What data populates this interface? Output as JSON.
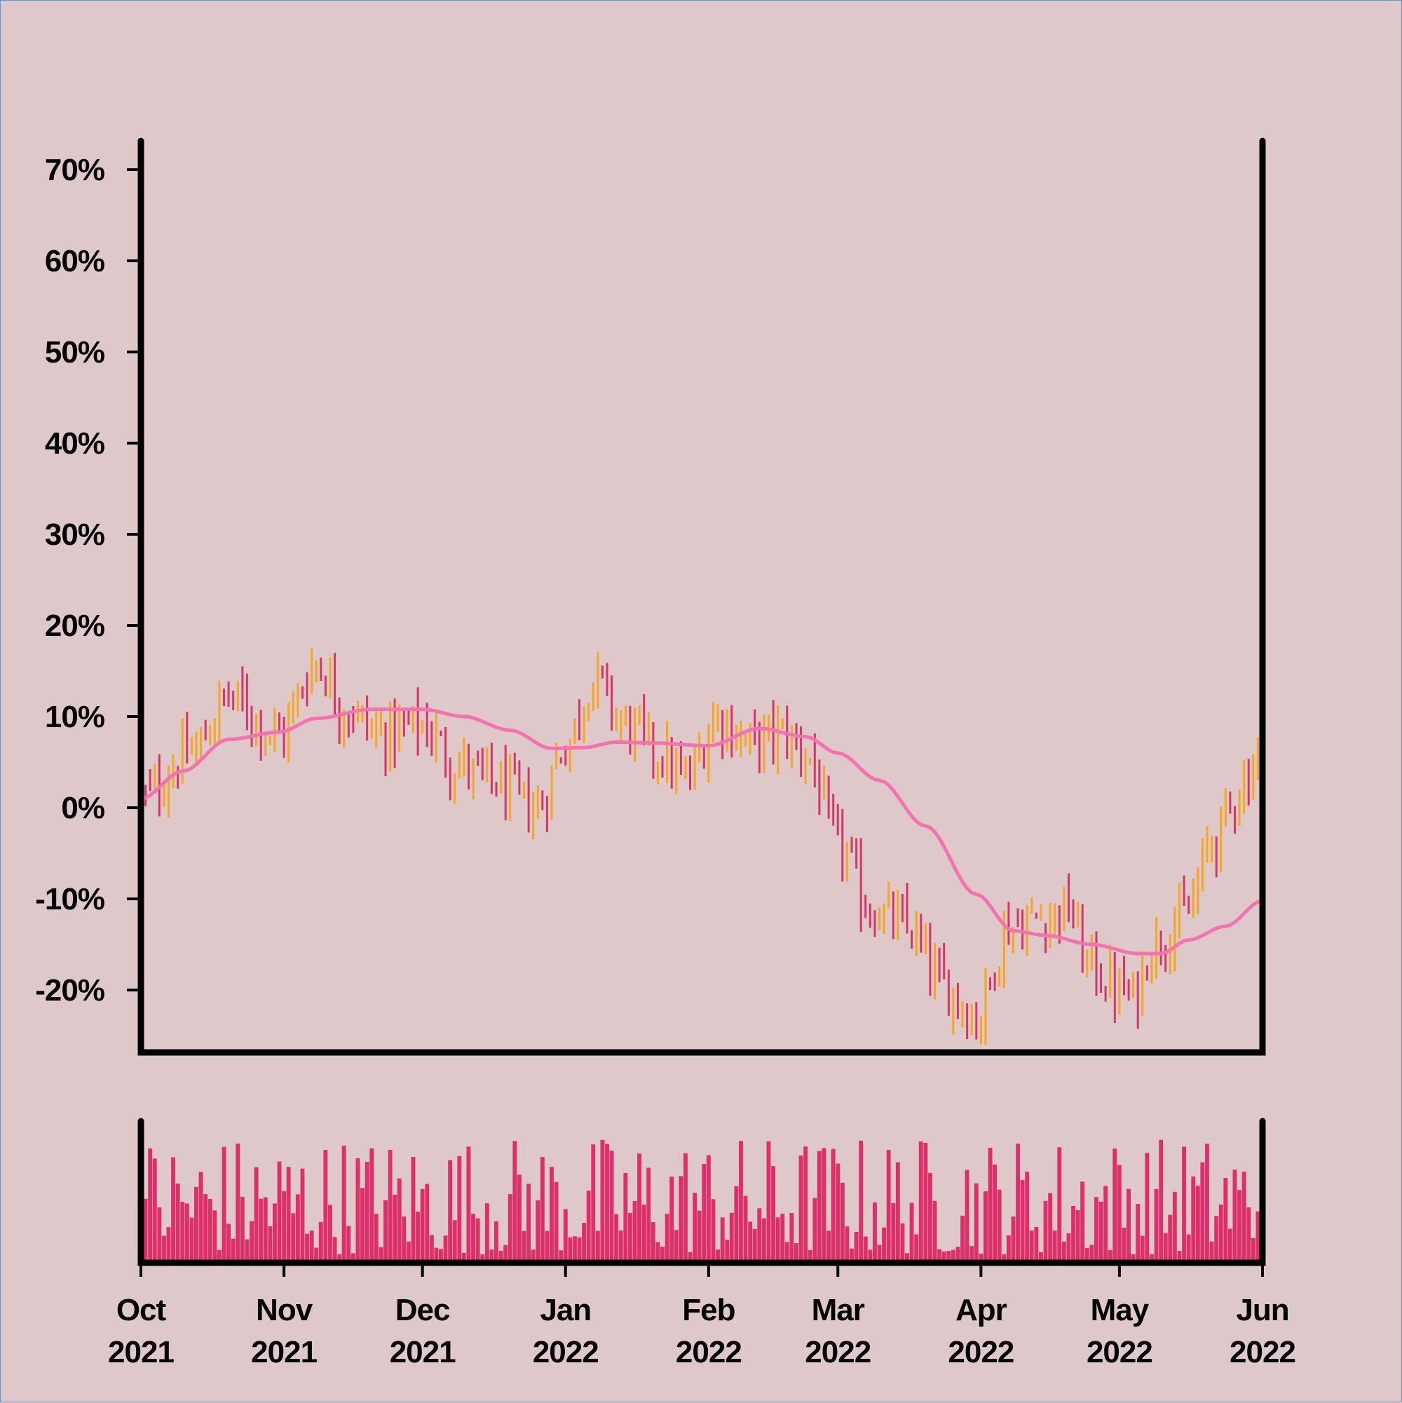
{
  "colors": {
    "background": "#dfc8c9",
    "up_bar": "#f5a623",
    "down_bar": "#d63565",
    "moving_average": "#f472b0",
    "volume": "#de2f6b",
    "axis": "#000000"
  },
  "chart_data": [
    {
      "type": "ohlc",
      "title": "",
      "xlabel": "",
      "ylabel": "",
      "ylim": [
        -26,
        73
      ],
      "y_ticks": [
        "-20%",
        "-10%",
        "0%",
        "10%",
        "20%",
        "30%",
        "40%",
        "50%",
        "60%",
        "70%"
      ],
      "y_tick_values": [
        -20,
        -10,
        0,
        10,
        20,
        30,
        40,
        50,
        60,
        70
      ],
      "x_range": [
        "2021-10-01",
        "2022-06-01"
      ],
      "grid": false,
      "legend": "none",
      "price_waypoints": [
        [
          "2021-10-01",
          1
        ],
        [
          "2021-10-12",
          6
        ],
        [
          "2021-10-20",
          12
        ],
        [
          "2021-10-31",
          8
        ],
        [
          "2021-11-08",
          16
        ],
        [
          "2021-11-14",
          11
        ],
        [
          "2021-11-22",
          8
        ],
        [
          "2021-12-01",
          9
        ],
        [
          "2021-12-08",
          5
        ],
        [
          "2021-12-15",
          3
        ],
        [
          "2021-12-26",
          0
        ],
        [
          "2022-01-01",
          7
        ],
        [
          "2022-01-07",
          14
        ],
        [
          "2022-01-14",
          9
        ],
        [
          "2022-01-21",
          6
        ],
        [
          "2022-01-27",
          3
        ],
        [
          "2022-02-03",
          10
        ],
        [
          "2022-02-10",
          7
        ],
        [
          "2022-02-17",
          8
        ],
        [
          "2022-02-22",
          6
        ],
        [
          "2022-03-01",
          -4
        ],
        [
          "2022-03-08",
          -11
        ],
        [
          "2022-03-15",
          -13
        ],
        [
          "2022-03-25",
          -20
        ],
        [
          "2022-03-31",
          -23
        ],
        [
          "2022-04-07",
          -13
        ],
        [
          "2022-04-15",
          -12
        ],
        [
          "2022-04-20",
          -11
        ],
        [
          "2022-04-24",
          -17
        ],
        [
          "2022-05-01",
          -20
        ],
        [
          "2022-05-04",
          -21
        ],
        [
          "2022-05-08",
          -15
        ],
        [
          "2022-05-15",
          -12
        ],
        [
          "2022-05-22",
          -3
        ],
        [
          "2022-05-28",
          3
        ],
        [
          "2022-06-01",
          7
        ]
      ],
      "moving_average": [
        [
          "2021-10-01",
          1
        ],
        [
          "2021-10-10",
          4
        ],
        [
          "2021-10-20",
          7.5
        ],
        [
          "2021-10-31",
          8.3
        ],
        [
          "2021-11-08",
          9.8
        ],
        [
          "2021-11-20",
          10.8
        ],
        [
          "2021-12-01",
          10.8
        ],
        [
          "2021-12-10",
          10
        ],
        [
          "2021-12-20",
          8.5
        ],
        [
          "2021-12-29",
          6.5
        ],
        [
          "2022-01-05",
          6.6
        ],
        [
          "2022-01-12",
          7.2
        ],
        [
          "2022-01-20",
          7.1
        ],
        [
          "2022-02-01",
          6.8
        ],
        [
          "2022-02-12",
          8.7
        ],
        [
          "2022-02-22",
          7.8
        ],
        [
          "2022-03-01",
          6
        ],
        [
          "2022-03-10",
          3
        ],
        [
          "2022-03-20",
          -2
        ],
        [
          "2022-03-31",
          -9.5
        ],
        [
          "2022-04-08",
          -13.5
        ],
        [
          "2022-04-15",
          -14
        ],
        [
          "2022-04-25",
          -15
        ],
        [
          "2022-05-05",
          -16
        ],
        [
          "2022-05-10",
          -16
        ],
        [
          "2022-05-16",
          -14.5
        ],
        [
          "2022-05-24",
          -13
        ],
        [
          "2022-06-01",
          -10.2
        ]
      ]
    },
    {
      "type": "bar",
      "title": "",
      "xlabel": "",
      "ylabel": "",
      "x_range": [
        "2021-10-01",
        "2022-06-01"
      ],
      "x_ticks": [
        {
          "month": "Oct",
          "year": "2021"
        },
        {
          "month": "Nov",
          "year": "2021"
        },
        {
          "month": "Dec",
          "year": "2021"
        },
        {
          "month": "Jan",
          "year": "2022"
        },
        {
          "month": "Feb",
          "year": "2022"
        },
        {
          "month": "Mar",
          "year": "2022"
        },
        {
          "month": "Apr",
          "year": "2022"
        },
        {
          "month": "May",
          "year": "2022"
        },
        {
          "month": "Jun",
          "year": "2022"
        }
      ],
      "x_tick_dates": [
        "2021-10-01",
        "2021-11-01",
        "2021-12-01",
        "2022-01-01",
        "2022-02-01",
        "2022-03-01",
        "2022-04-01",
        "2022-05-01",
        "2022-06-01"
      ],
      "grid": false,
      "legend": "none"
    }
  ]
}
